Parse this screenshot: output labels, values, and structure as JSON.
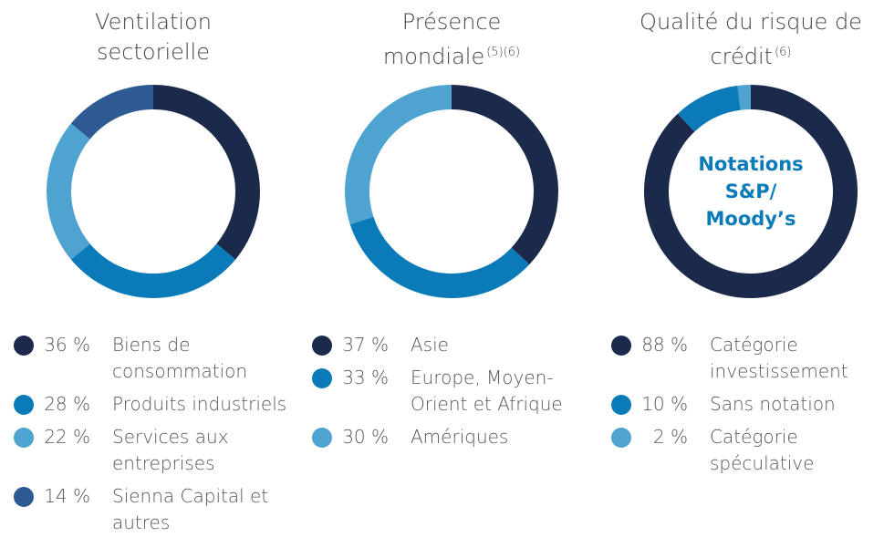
{
  "chart_data": [
    {
      "type": "pie",
      "donut": true,
      "title": "Ventilation sectorielle",
      "categories": [
        "Biens de consommation",
        "Produits industriels",
        "Services aux entreprises",
        "Sienna Capital et autres"
      ],
      "values": [
        36,
        28,
        22,
        14
      ],
      "value_labels": [
        "36 %",
        "28 %",
        "22 %",
        "14 %"
      ],
      "colors": [
        "#1b2a4a",
        "#0a7ab8",
        "#4fa3d0",
        "#2e5a94"
      ]
    },
    {
      "type": "pie",
      "donut": true,
      "title": "Présence mondiale",
      "title_note": "(5)(6)",
      "categories": [
        "Asie",
        "Europe, Moyen-Orient et Afrique",
        "Amériques"
      ],
      "values": [
        37,
        33,
        30
      ],
      "value_labels": [
        "37 %",
        "33 %",
        "30 %"
      ],
      "colors": [
        "#1b2a4a",
        "#0a7ab8",
        "#4fa3d0"
      ]
    },
    {
      "type": "pie",
      "donut": true,
      "title": "Qualité du risque de crédit",
      "title_note": "(6)",
      "center_label": [
        "Notations",
        "S&P/",
        "Moody’s"
      ],
      "categories": [
        "Catégorie investissement",
        "Sans notation",
        "Catégorie spéculative"
      ],
      "values": [
        88,
        10,
        2
      ],
      "value_labels": [
        "88 %",
        "10 %",
        "2 %"
      ],
      "colors": [
        "#1b2a4a",
        "#0a7ab8",
        "#4fa3d0"
      ]
    }
  ]
}
